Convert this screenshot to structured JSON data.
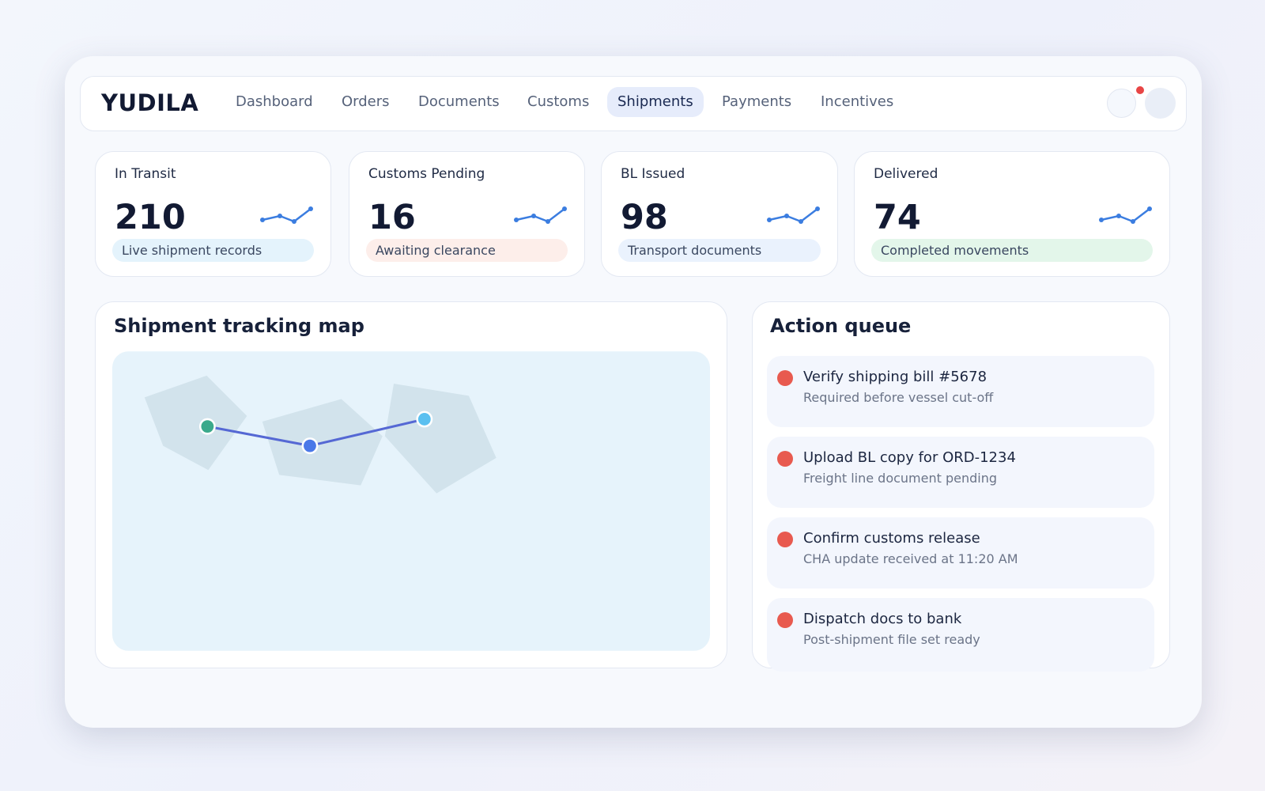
{
  "header": {
    "brand": "YUDILA",
    "nav": [
      {
        "label": "Dashboard"
      },
      {
        "label": "Orders"
      },
      {
        "label": "Documents"
      },
      {
        "label": "Customs"
      },
      {
        "label": "Shipments",
        "active": true
      },
      {
        "label": "Payments"
      },
      {
        "label": "Incentives"
      }
    ]
  },
  "kpis": [
    {
      "label": "In Transit",
      "value": 210,
      "note": "Live shipment records"
    },
    {
      "label": "Customs Pending",
      "value": 16,
      "note": "Awaiting clearance"
    },
    {
      "label": "BL Issued",
      "value": 98,
      "note": "Transport documents"
    },
    {
      "label": "Delivered",
      "value": 74,
      "note": "Completed movements"
    }
  ],
  "map": {
    "title": "Shipment tracking map"
  },
  "queue": {
    "title": "Action queue",
    "items": [
      {
        "title": "Verify shipping bill #5678",
        "subtitle": "Required before vessel cut-off"
      },
      {
        "title": "Upload BL copy for ORD-1234",
        "subtitle": "Freight line document pending"
      },
      {
        "title": "Confirm customs release",
        "subtitle": "CHA update received at 11:20 AM"
      },
      {
        "title": "Dispatch docs to bank",
        "subtitle": "Post-shipment file set ready"
      }
    ]
  }
}
